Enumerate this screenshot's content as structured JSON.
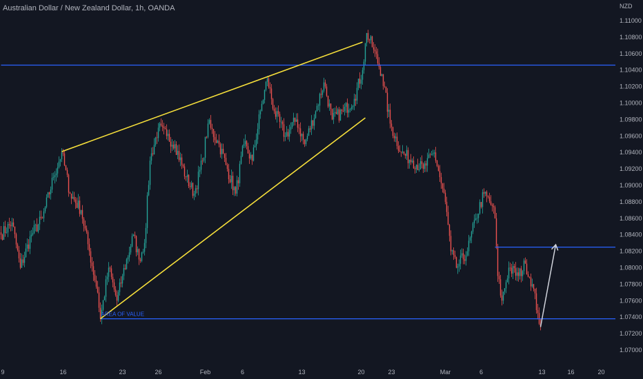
{
  "header": {
    "title": "Australian Dollar / New Zealand Dollar, 1h, OANDA"
  },
  "colors": {
    "background": "#131722",
    "up": "#26a69a",
    "down": "#ef5350",
    "horizontal_line": "#2962ff",
    "trendline": "#f7e03b",
    "arrow": "#d1d4dc",
    "axis_text": "#b2b5be"
  },
  "chart_data": {
    "type": "candlestick",
    "title": "",
    "y_axis_unit": "NZD",
    "ylim": [
      1.0695,
      1.1115
    ],
    "y_ticks": [
      "1.11000",
      "1.10800",
      "1.10600",
      "1.10400",
      "1.10200",
      "1.10000",
      "1.09800",
      "1.09600",
      "1.09400",
      "1.09200",
      "1.09000",
      "1.08800",
      "1.08600",
      "1.08400",
      "1.08200",
      "1.08000",
      "1.07800",
      "1.07600",
      "1.07400",
      "1.07200",
      "1.07000"
    ],
    "y_tick_values": [
      1.11,
      1.108,
      1.106,
      1.104,
      1.102,
      1.1,
      1.098,
      1.096,
      1.094,
      1.092,
      1.09,
      1.088,
      1.086,
      1.084,
      1.082,
      1.08,
      1.078,
      1.076,
      1.074,
      1.072,
      1.07
    ],
    "x_ticks": [
      {
        "label": "9",
        "index": 0
      },
      {
        "label": "16",
        "index": 45
      },
      {
        "label": "23",
        "index": 88
      },
      {
        "label": "26",
        "index": 114
      },
      {
        "label": "Feb",
        "index": 148
      },
      {
        "label": "6",
        "index": 175
      },
      {
        "label": "13",
        "index": 218
      },
      {
        "label": "20",
        "index": 261
      },
      {
        "label": "23",
        "index": 283
      },
      {
        "label": "Mar",
        "index": 322
      },
      {
        "label": "6",
        "index": 348
      },
      {
        "label": "13",
        "index": 392
      },
      {
        "label": "16",
        "index": 413
      },
      {
        "label": "20",
        "index": 435
      }
    ],
    "x_range": [
      0,
      465
    ],
    "last_candle_index": 391,
    "price_path": [
      [
        0,
        1.084
      ],
      [
        8,
        1.0855
      ],
      [
        14,
        1.08
      ],
      [
        22,
        1.084
      ],
      [
        30,
        1.086
      ],
      [
        38,
        1.091
      ],
      [
        44,
        1.094
      ],
      [
        50,
        1.089
      ],
      [
        58,
        1.087
      ],
      [
        64,
        1.082
      ],
      [
        70,
        1.077
      ],
      [
        72,
        1.0738
      ],
      [
        78,
        1.08
      ],
      [
        84,
        1.076
      ],
      [
        88,
        1.079
      ],
      [
        96,
        1.084
      ],
      [
        100,
        1.081
      ],
      [
        104,
        1.083
      ],
      [
        108,
        1.093
      ],
      [
        114,
        1.097
      ],
      [
        120,
        1.096
      ],
      [
        126,
        1.095
      ],
      [
        134,
        1.091
      ],
      [
        140,
        1.089
      ],
      [
        146,
        1.093
      ],
      [
        150,
        1.0975
      ],
      [
        158,
        1.095
      ],
      [
        164,
        1.092
      ],
      [
        170,
        1.089
      ],
      [
        176,
        1.095
      ],
      [
        182,
        1.093
      ],
      [
        188,
        1.099
      ],
      [
        193,
        1.103
      ],
      [
        198,
        1.099
      ],
      [
        206,
        1.096
      ],
      [
        214,
        1.098
      ],
      [
        220,
        1.095
      ],
      [
        228,
        1.099
      ],
      [
        234,
        1.1025
      ],
      [
        240,
        1.098
      ],
      [
        248,
        1.099
      ],
      [
        256,
        1.1005
      ],
      [
        262,
        1.104
      ],
      [
        265,
        1.1085
      ],
      [
        270,
        1.1065
      ],
      [
        276,
        1.1035
      ],
      [
        282,
        1.0975
      ],
      [
        290,
        1.094
      ],
      [
        298,
        1.093
      ],
      [
        306,
        1.092
      ],
      [
        314,
        1.094
      ],
      [
        318,
        1.091
      ],
      [
        322,
        1.088
      ],
      [
        326,
        1.082
      ],
      [
        330,
        1.08
      ],
      [
        338,
        1.082
      ],
      [
        344,
        1.086
      ],
      [
        350,
        1.089
      ],
      [
        356,
        1.0875
      ],
      [
        358,
        1.086
      ],
      [
        360,
        1.079
      ],
      [
        363,
        1.076
      ],
      [
        368,
        1.08
      ],
      [
        375,
        1.079
      ],
      [
        380,
        1.0805
      ],
      [
        385,
        1.078
      ],
      [
        389,
        1.0745
      ],
      [
        391,
        1.0728
      ]
    ]
  },
  "annotations": {
    "label_area_of_value": "AREA OF VALUE",
    "horizontal_lines": [
      {
        "name": "resistance",
        "price": 1.1046,
        "from_index": 0
      },
      {
        "name": "support",
        "price": 1.0738,
        "from_index": 72
      },
      {
        "name": "target",
        "price": 1.0825,
        "from_index": 358
      }
    ],
    "trendlines": [
      {
        "name": "upper-trendline",
        "from": [
          44,
          1.0941
        ],
        "to": [
          262,
          1.1074
        ]
      },
      {
        "name": "lower-trendline",
        "from": [
          72,
          1.0738
        ],
        "to": [
          264,
          1.0982
        ]
      }
    ],
    "arrow": {
      "from": [
        391,
        1.0728
      ],
      "to": [
        402,
        1.0828
      ]
    }
  }
}
